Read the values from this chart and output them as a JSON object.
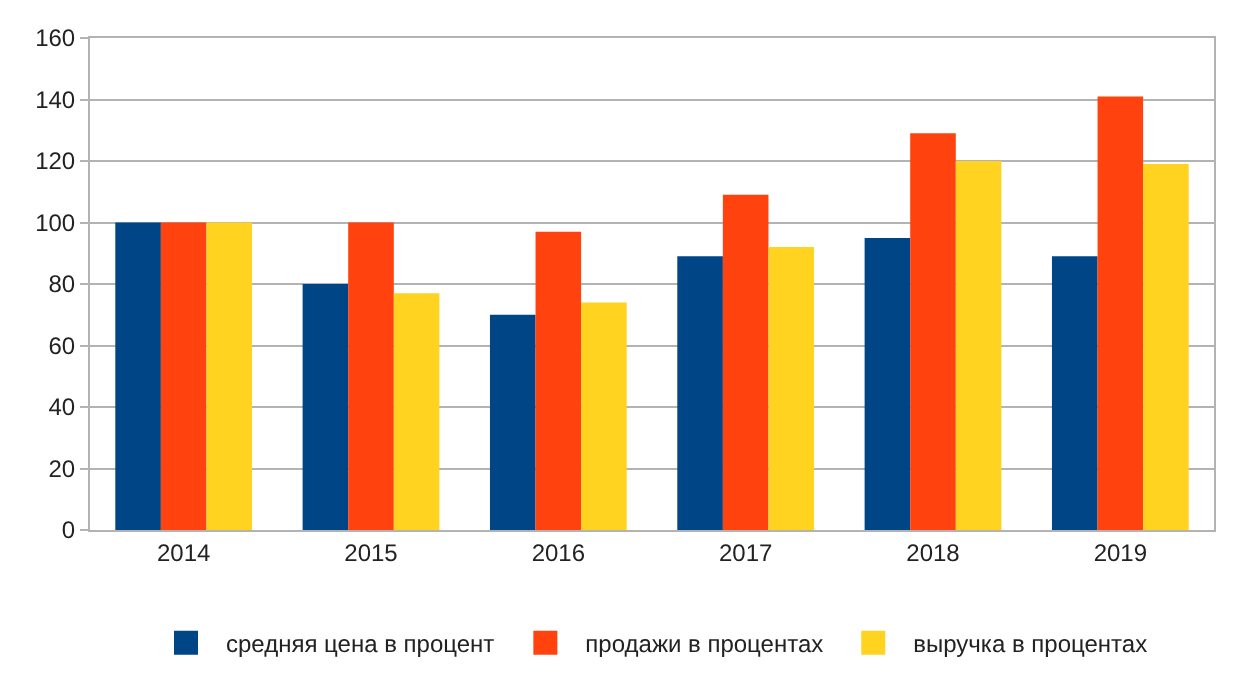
{
  "chart_data": {
    "type": "bar",
    "categories": [
      "2014",
      "2015",
      "2016",
      "2017",
      "2018",
      "2019"
    ],
    "series": [
      {
        "name": "средняя цена в процент",
        "color": "#004586",
        "values": [
          100,
          80,
          70,
          89,
          95,
          89
        ]
      },
      {
        "name": "продажи в процентах",
        "color": "#ff420e",
        "values": [
          100,
          100,
          97,
          109,
          129,
          141
        ]
      },
      {
        "name": "выручка в процентах",
        "color": "#ffd320",
        "values": [
          100,
          77,
          74,
          92,
          120,
          119
        ]
      }
    ],
    "ylim": [
      0,
      160
    ],
    "yticks": [
      0,
      20,
      40,
      60,
      80,
      100,
      120,
      140,
      160
    ],
    "grid": "y",
    "legend": "bottom"
  }
}
